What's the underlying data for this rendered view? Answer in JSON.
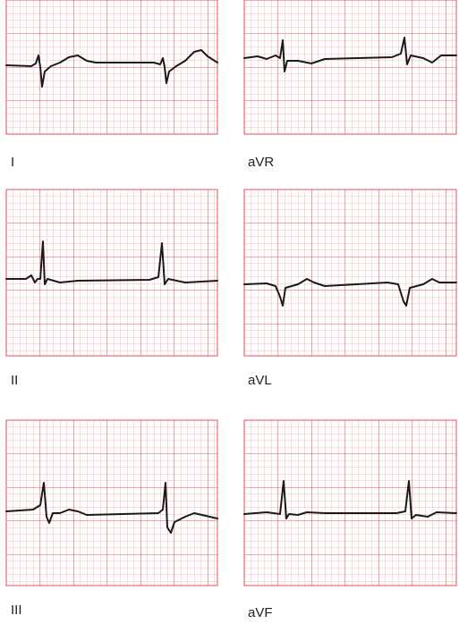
{
  "leads": [
    {
      "label": "I"
    },
    {
      "label": "aVR"
    },
    {
      "label": "II"
    },
    {
      "label": "aVL"
    },
    {
      "label": "III"
    },
    {
      "label": "aVF"
    }
  ]
}
